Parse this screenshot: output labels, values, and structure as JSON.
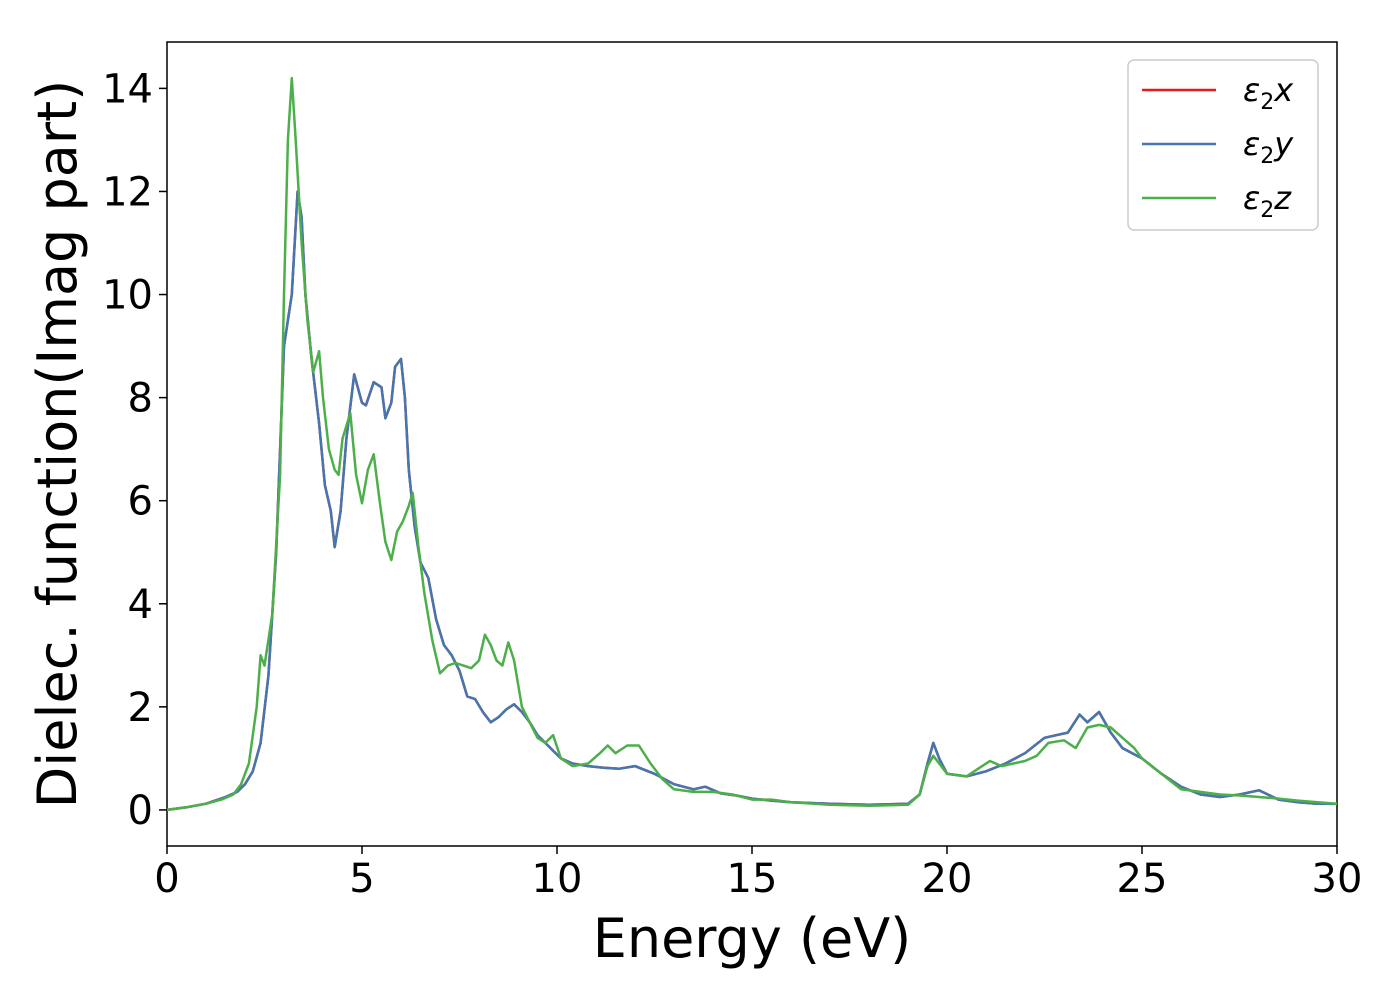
{
  "chart_data": {
    "type": "line",
    "xlabel": "Energy (eV)",
    "ylabel": "Dielec. function(Imag part)",
    "xlim": [
      0,
      30
    ],
    "ylim": [
      -0.7,
      14.9
    ],
    "xticks": [
      "0",
      "5",
      "10",
      "15",
      "20",
      "25",
      "30"
    ],
    "yticks": [
      "0",
      "2",
      "4",
      "6",
      "8",
      "10",
      "12",
      "14"
    ],
    "grid": false,
    "legend_position": "top-right",
    "series": [
      {
        "name": "ε2x",
        "legend_base": "ε",
        "legend_sub": "2",
        "legend_var": "x",
        "color": "#e41a1c",
        "x": [
          0,
          0.5,
          1.0,
          1.5,
          1.8,
          2.0,
          2.2,
          2.4,
          2.6,
          2.8,
          3.0,
          3.2,
          3.35,
          3.45,
          3.55,
          3.7,
          3.9,
          4.05,
          4.2,
          4.3,
          4.45,
          4.6,
          4.8,
          5.0,
          5.1,
          5.3,
          5.5,
          5.6,
          5.75,
          5.85,
          6.0,
          6.1,
          6.2,
          6.35,
          6.5,
          6.7,
          6.9,
          7.1,
          7.3,
          7.5,
          7.7,
          7.9,
          8.1,
          8.3,
          8.5,
          8.7,
          8.9,
          9.1,
          9.3,
          9.5,
          9.7,
          9.9,
          10.1,
          10.4,
          10.8,
          11.2,
          11.6,
          12.0,
          12.5,
          13.0,
          13.5,
          13.8,
          14.2,
          14.6,
          15.0,
          15.5,
          16.0,
          17.0,
          18.0,
          19.0,
          19.3,
          19.5,
          19.65,
          19.8,
          20.0,
          20.5,
          21.0,
          21.5,
          22.0,
          22.5,
          22.8,
          23.1,
          23.4,
          23.6,
          23.9,
          24.2,
          24.5,
          25.0,
          25.5,
          26.0,
          26.5,
          27.0,
          27.5,
          28.0,
          28.5,
          29.0,
          29.5,
          30.0
        ],
        "y": [
          0,
          0.05,
          0.12,
          0.25,
          0.35,
          0.5,
          0.75,
          1.3,
          2.6,
          5.0,
          9.0,
          10.0,
          12.0,
          11.5,
          10.0,
          8.8,
          7.5,
          6.3,
          5.8,
          5.1,
          5.8,
          7.2,
          8.45,
          7.9,
          7.85,
          8.3,
          8.2,
          7.6,
          7.9,
          8.6,
          8.75,
          8.0,
          6.6,
          5.5,
          4.8,
          4.5,
          3.7,
          3.2,
          3.0,
          2.7,
          2.2,
          2.15,
          1.9,
          1.7,
          1.8,
          1.95,
          2.05,
          1.9,
          1.7,
          1.45,
          1.3,
          1.15,
          1.0,
          0.9,
          0.85,
          0.82,
          0.8,
          0.85,
          0.7,
          0.5,
          0.4,
          0.45,
          0.32,
          0.28,
          0.22,
          0.18,
          0.15,
          0.12,
          0.1,
          0.12,
          0.3,
          0.9,
          1.3,
          1.0,
          0.7,
          0.65,
          0.75,
          0.9,
          1.1,
          1.4,
          1.45,
          1.5,
          1.85,
          1.7,
          1.9,
          1.5,
          1.2,
          1.0,
          0.7,
          0.45,
          0.3,
          0.25,
          0.3,
          0.38,
          0.2,
          0.15,
          0.12,
          0.12
        ]
      },
      {
        "name": "ε2y",
        "legend_base": "ε",
        "legend_sub": "2",
        "legend_var": "y",
        "color": "#4477b0",
        "x": [
          0,
          0.5,
          1.0,
          1.5,
          1.8,
          2.0,
          2.2,
          2.4,
          2.6,
          2.8,
          3.0,
          3.2,
          3.35,
          3.45,
          3.55,
          3.7,
          3.9,
          4.05,
          4.2,
          4.3,
          4.45,
          4.6,
          4.8,
          5.0,
          5.1,
          5.3,
          5.5,
          5.6,
          5.75,
          5.85,
          6.0,
          6.1,
          6.2,
          6.35,
          6.5,
          6.7,
          6.9,
          7.1,
          7.3,
          7.5,
          7.7,
          7.9,
          8.1,
          8.3,
          8.5,
          8.7,
          8.9,
          9.1,
          9.3,
          9.5,
          9.7,
          9.9,
          10.1,
          10.4,
          10.8,
          11.2,
          11.6,
          12.0,
          12.5,
          13.0,
          13.5,
          13.8,
          14.2,
          14.6,
          15.0,
          15.5,
          16.0,
          17.0,
          18.0,
          19.0,
          19.3,
          19.5,
          19.65,
          19.8,
          20.0,
          20.5,
          21.0,
          21.5,
          22.0,
          22.5,
          22.8,
          23.1,
          23.4,
          23.6,
          23.9,
          24.2,
          24.5,
          25.0,
          25.5,
          26.0,
          26.5,
          27.0,
          27.5,
          28.0,
          28.5,
          29.0,
          29.5,
          30.0
        ],
        "y": [
          0,
          0.05,
          0.12,
          0.25,
          0.35,
          0.5,
          0.75,
          1.3,
          2.6,
          5.0,
          9.0,
          10.0,
          12.0,
          11.5,
          10.0,
          8.8,
          7.5,
          6.3,
          5.8,
          5.1,
          5.8,
          7.2,
          8.45,
          7.9,
          7.85,
          8.3,
          8.2,
          7.6,
          7.9,
          8.6,
          8.75,
          8.0,
          6.6,
          5.5,
          4.8,
          4.5,
          3.7,
          3.2,
          3.0,
          2.7,
          2.2,
          2.15,
          1.9,
          1.7,
          1.8,
          1.95,
          2.05,
          1.9,
          1.7,
          1.45,
          1.3,
          1.15,
          1.0,
          0.9,
          0.85,
          0.82,
          0.8,
          0.85,
          0.7,
          0.5,
          0.4,
          0.45,
          0.32,
          0.28,
          0.22,
          0.18,
          0.15,
          0.12,
          0.1,
          0.12,
          0.3,
          0.9,
          1.3,
          1.0,
          0.7,
          0.65,
          0.75,
          0.9,
          1.1,
          1.4,
          1.45,
          1.5,
          1.85,
          1.7,
          1.9,
          1.5,
          1.2,
          1.0,
          0.7,
          0.45,
          0.3,
          0.25,
          0.3,
          0.38,
          0.2,
          0.15,
          0.12,
          0.12
        ]
      },
      {
        "name": "ε2z",
        "legend_base": "ε",
        "legend_sub": "2",
        "legend_var": "z",
        "color": "#4daf4a",
        "x": [
          0,
          0.5,
          1.0,
          1.4,
          1.7,
          1.9,
          2.1,
          2.3,
          2.4,
          2.5,
          2.7,
          2.9,
          3.0,
          3.1,
          3.2,
          3.3,
          3.45,
          3.6,
          3.75,
          3.9,
          4.0,
          4.15,
          4.3,
          4.4,
          4.5,
          4.7,
          4.85,
          5.0,
          5.15,
          5.3,
          5.45,
          5.6,
          5.75,
          5.9,
          6.05,
          6.2,
          6.3,
          6.45,
          6.6,
          6.8,
          7.0,
          7.2,
          7.4,
          7.6,
          7.8,
          8.0,
          8.15,
          8.3,
          8.45,
          8.6,
          8.75,
          8.9,
          9.1,
          9.3,
          9.5,
          9.7,
          9.9,
          10.1,
          10.4,
          10.8,
          11.1,
          11.3,
          11.5,
          11.8,
          12.1,
          12.4,
          12.7,
          13.0,
          13.5,
          14.0,
          14.5,
          15.0,
          15.5,
          16.0,
          17.0,
          18.0,
          19.0,
          19.3,
          19.5,
          19.65,
          19.8,
          20.0,
          20.5,
          20.8,
          21.1,
          21.4,
          21.7,
          22.0,
          22.3,
          22.6,
          23.0,
          23.3,
          23.6,
          23.9,
          24.2,
          24.5,
          24.8,
          25.0,
          25.5,
          26.0,
          26.5,
          27.0,
          27.5,
          28.0,
          28.5,
          29.0,
          29.5,
          30.0
        ],
        "y": [
          0,
          0.05,
          0.12,
          0.2,
          0.3,
          0.5,
          0.9,
          2.0,
          3.0,
          2.8,
          3.8,
          6.5,
          10.0,
          13.0,
          14.2,
          13.0,
          11.0,
          9.5,
          8.5,
          8.9,
          8.0,
          7.0,
          6.6,
          6.5,
          7.2,
          7.7,
          6.5,
          5.95,
          6.6,
          6.9,
          6.0,
          5.2,
          4.85,
          5.4,
          5.6,
          5.9,
          6.15,
          5.1,
          4.2,
          3.3,
          2.65,
          2.8,
          2.85,
          2.8,
          2.75,
          2.9,
          3.4,
          3.2,
          2.9,
          2.8,
          3.25,
          2.9,
          2.0,
          1.7,
          1.4,
          1.3,
          1.45,
          1.0,
          0.85,
          0.9,
          1.1,
          1.25,
          1.1,
          1.25,
          1.25,
          0.9,
          0.6,
          0.4,
          0.35,
          0.35,
          0.3,
          0.2,
          0.2,
          0.15,
          0.1,
          0.08,
          0.1,
          0.3,
          0.85,
          1.05,
          0.9,
          0.7,
          0.65,
          0.8,
          0.95,
          0.85,
          0.9,
          0.95,
          1.05,
          1.3,
          1.35,
          1.2,
          1.6,
          1.65,
          1.6,
          1.4,
          1.2,
          1.0,
          0.7,
          0.4,
          0.35,
          0.3,
          0.28,
          0.25,
          0.22,
          0.18,
          0.15,
          0.12
        ]
      }
    ]
  }
}
